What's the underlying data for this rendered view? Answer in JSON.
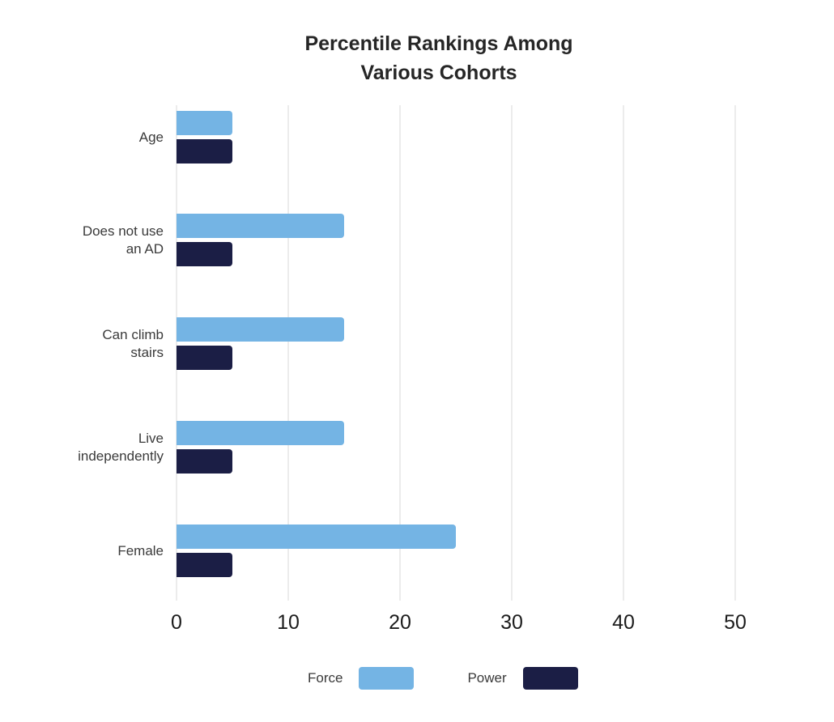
{
  "chart_data": {
    "type": "bar",
    "orientation": "horizontal",
    "title": "Percentile Rankings Among Various Cohorts",
    "title_lines": [
      "Percentile Rankings Among",
      "Various Cohorts"
    ],
    "categories": [
      "Age",
      "Does not use an AD",
      "Can climb stairs",
      "Live independently",
      "Female"
    ],
    "category_label_lines": [
      [
        "Age"
      ],
      [
        "Does not use",
        "an AD"
      ],
      [
        "Can climb",
        "stairs"
      ],
      [
        "Live",
        "independently"
      ],
      [
        "Female"
      ]
    ],
    "series": [
      {
        "name": "Force",
        "color": "#74b4e4",
        "values": [
          5,
          15,
          15,
          15,
          25
        ]
      },
      {
        "name": "Power",
        "color": "#1b1e45",
        "values": [
          5,
          5,
          5,
          5,
          5
        ]
      }
    ],
    "x_ticks": [
      0,
      10,
      20,
      30,
      40,
      50
    ],
    "xlim": [
      0,
      50
    ],
    "xlabel": "",
    "ylabel": "",
    "grid": true,
    "legend_position": "bottom"
  },
  "colors": {
    "force": "#74b4e4",
    "power": "#1b1e45",
    "gridline": "#ececec",
    "title_text": "#262626",
    "category_text": "#3a3a3a",
    "tick_text": "#1c1c1c",
    "background": "#ffffff"
  }
}
